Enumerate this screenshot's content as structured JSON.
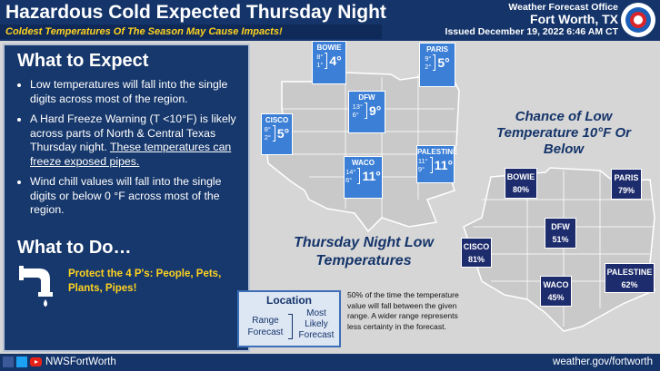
{
  "header": {
    "title": "Hazardous Cold Expected Thursday Night",
    "subtitle": "Coldest Temperatures Of The Season May Cause Impacts!",
    "office": "Weather Forecast Office",
    "location": "Fort Worth, TX",
    "issued": "Issued December 19, 2022 6:46 AM CT"
  },
  "expect": {
    "heading": "What to Expect",
    "bullets": [
      {
        "text": "Low temperatures will fall into the single digits across most of the region."
      },
      {
        "text": "A Hard Freeze Warning (T <10°F) is likely across parts of North & Central Texas Thursday night.",
        "underlined": "These temperatures can freeze exposed pipes."
      },
      {
        "text": "Wind chill values will fall into the single digits or below 0 °F across most of the region."
      }
    ]
  },
  "todo": {
    "heading": "What to Do…",
    "text": "Protect the 4 P's: People, Pets, Plants, Pipes!"
  },
  "forecast_map": {
    "caption": "Thursday Night Low Temperatures",
    "cities": [
      {
        "name": "BOWIE",
        "high": "8°",
        "low": "1°",
        "likely": "4°"
      },
      {
        "name": "PARIS",
        "high": "9°",
        "low": "2°",
        "likely": "5°"
      },
      {
        "name": "DFW",
        "high": "13°",
        "low": "6°",
        "likely": "9°"
      },
      {
        "name": "CISCO",
        "high": "8°",
        "low": "2°",
        "likely": "5°"
      },
      {
        "name": "WACO",
        "high": "14°",
        "low": "6°",
        "likely": "11°"
      },
      {
        "name": "PALESTINE",
        "high": "11°",
        "low": "9°",
        "likely": "11°"
      }
    ]
  },
  "chance_map": {
    "title": "Chance of Low Temperature 10°F Or Below",
    "cities": [
      {
        "name": "BOWIE",
        "chance": "80%"
      },
      {
        "name": "PARIS",
        "chance": "79%"
      },
      {
        "name": "DFW",
        "chance": "51%"
      },
      {
        "name": "CISCO",
        "chance": "81%"
      },
      {
        "name": "WACO",
        "chance": "45%"
      },
      {
        "name": "PALESTINE",
        "chance": "62%"
      }
    ]
  },
  "legend": {
    "title": "Location",
    "range": "Range Forecast",
    "likely": "Most Likely Forecast",
    "note": "50% of the time the temperature value will fall between the given range. A wider range represents less certainty in the forecast."
  },
  "footer": {
    "handle": "NWSFortWorth",
    "url": "weather.gov/fortworth"
  }
}
